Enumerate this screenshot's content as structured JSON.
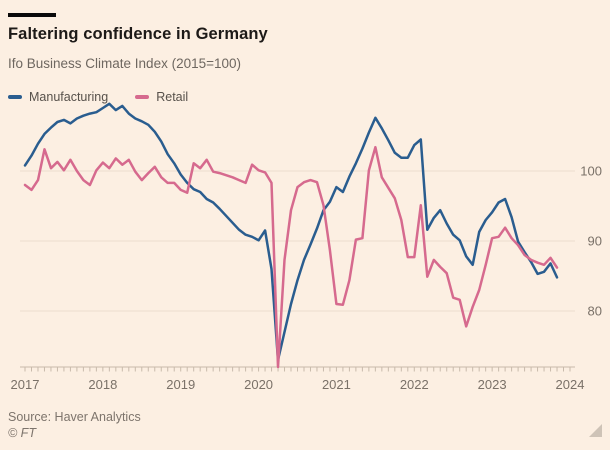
{
  "header": {
    "title": "Faltering confidence in Germany",
    "subtitle": "Ifo Business Climate Index (2015=100)"
  },
  "legend": [
    {
      "label": "Manufacturing",
      "color": "#2a5d8f"
    },
    {
      "label": "Retail",
      "color": "#d66a8e"
    }
  ],
  "colors": {
    "background": "#fcefe2",
    "accent_bar": "#0a0a0a",
    "title_text": "#1d1a18",
    "muted_text": "#6e6760",
    "tick_label": "#7a7168",
    "grid_line": "#ecddce",
    "axis_line": "#c8baab",
    "manufacturing_line": "#2a5d8f",
    "retail_line": "#d66a8e"
  },
  "chart_data": {
    "type": "line",
    "title": "Faltering confidence in Germany",
    "subtitle": "Ifo Business Climate Index (2015=100)",
    "xlabel": "",
    "ylabel": "",
    "x_start": "2017-01",
    "x_end": "2023-11",
    "frequency": "monthly",
    "xticks": [
      "2017",
      "2018",
      "2019",
      "2020",
      "2021",
      "2022",
      "2023",
      "2024"
    ],
    "yticks": [
      80,
      90,
      100
    ],
    "ylim": [
      72,
      111
    ],
    "grid": true,
    "legend_position": "top-left",
    "series": [
      {
        "name": "Manufacturing",
        "color": "#2a5d8f",
        "values": [
          100.8,
          102.2,
          103.9,
          105.3,
          106.2,
          107.0,
          107.3,
          106.8,
          107.5,
          107.9,
          108.2,
          108.4,
          109.0,
          109.6,
          108.7,
          109.3,
          108.2,
          107.5,
          107.1,
          106.6,
          105.6,
          104.2,
          102.4,
          101.1,
          99.5,
          98.3,
          97.4,
          97.0,
          96.0,
          95.5,
          94.6,
          93.6,
          92.6,
          91.6,
          90.9,
          90.6,
          90.1,
          91.5,
          86.0,
          73.0,
          77.0,
          81.0,
          84.4,
          87.3,
          89.5,
          91.8,
          94.4,
          95.6,
          97.7,
          97.0,
          99.2,
          101.1,
          103.2,
          105.5,
          107.6,
          106.1,
          104.4,
          102.6,
          101.9,
          101.9,
          103.7,
          104.5,
          91.6,
          93.3,
          94.4,
          92.5,
          90.9,
          90.1,
          87.8,
          86.6,
          91.3,
          93.0,
          94.1,
          95.5,
          96.0,
          93.4,
          89.9,
          88.4,
          87.0,
          85.3,
          85.6,
          86.8,
          84.8
        ]
      },
      {
        "name": "Retail",
        "color": "#d66a8e",
        "values": [
          98.0,
          97.3,
          98.7,
          103.1,
          100.4,
          101.3,
          100.1,
          101.6,
          100.0,
          98.7,
          98.0,
          100.1,
          101.2,
          100.4,
          101.8,
          100.9,
          101.6,
          99.9,
          98.7,
          99.7,
          100.6,
          99.1,
          98.3,
          98.3,
          97.3,
          96.9,
          101.1,
          100.4,
          101.6,
          99.9,
          99.7,
          99.4,
          99.1,
          98.7,
          98.3,
          100.9,
          100.1,
          99.8,
          98.3,
          72.0,
          87.3,
          94.4,
          97.7,
          98.4,
          98.7,
          98.4,
          95.1,
          88.7,
          81.0,
          80.9,
          84.4,
          90.2,
          90.4,
          100.1,
          103.4,
          99.1,
          97.6,
          96.1,
          93.0,
          87.7,
          87.7,
          95.1,
          84.9,
          87.3,
          86.3,
          85.4,
          81.9,
          81.6,
          77.8,
          80.6,
          83.0,
          86.6,
          90.4,
          90.6,
          91.9,
          90.4,
          89.4,
          88.0,
          87.3,
          86.9,
          86.6,
          87.6,
          86.2
        ]
      }
    ]
  },
  "footer": {
    "source": "Source: Haver Analytics",
    "copyright": "© FT"
  },
  "icons": {
    "resize_handle": "corner-resize-icon"
  }
}
